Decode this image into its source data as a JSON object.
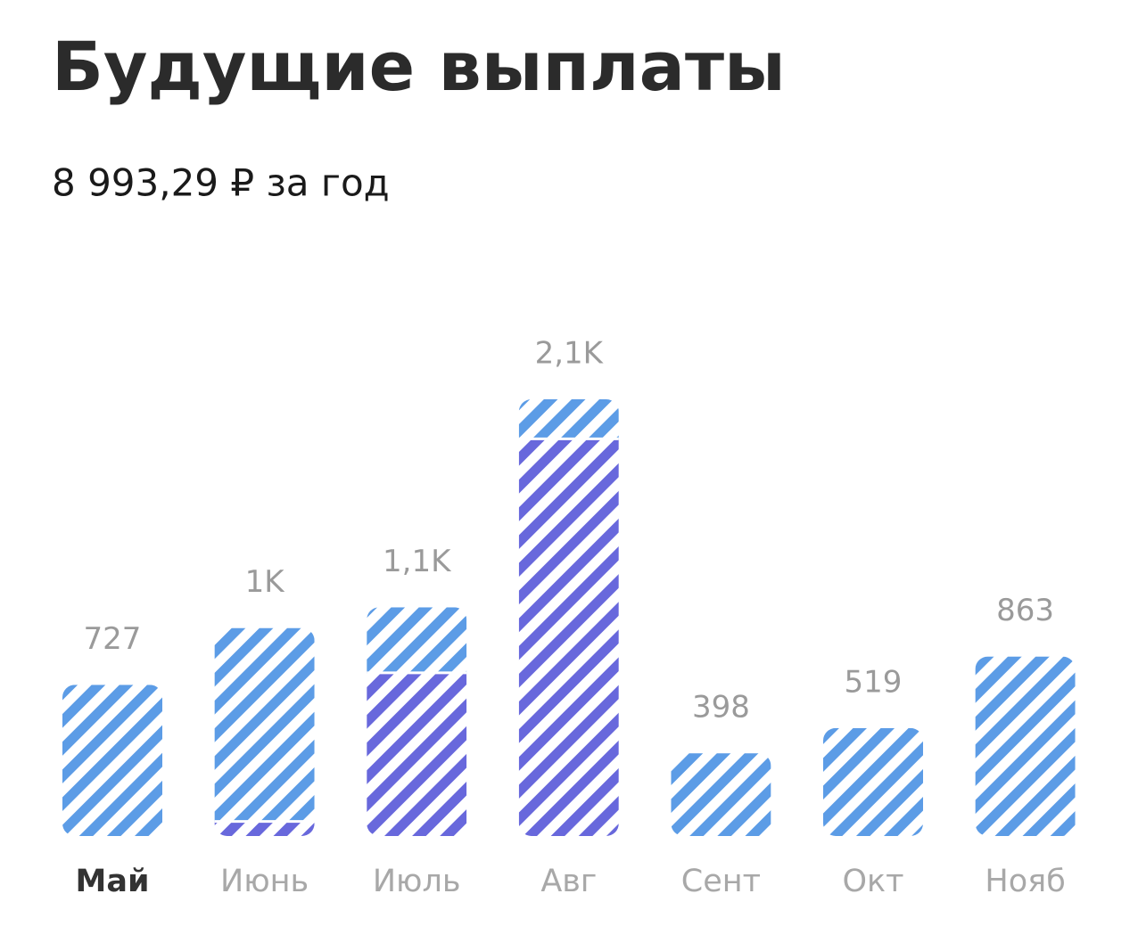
{
  "chart_data": {
    "type": "bar",
    "stacked": true,
    "title": "Будущие выплаты",
    "subtitle": "8 993,29 ₽ за год",
    "categories": [
      "Май",
      "Июнь",
      "Июль",
      "Авг",
      "Сент",
      "Окт",
      "Нояб"
    ],
    "selected": 0,
    "series": [
      {
        "color": "#6868dc",
        "values": [
          0,
          70,
          785,
          1910,
          0,
          0,
          0
        ]
      },
      {
        "color": "#5c9ce6",
        "values": [
          727,
          930,
          315,
          190,
          398,
          519,
          863
        ]
      }
    ],
    "totals": {
      "values": [
        727,
        1000,
        1100,
        2100,
        398,
        519,
        863
      ],
      "value_labels": [
        "727",
        "1K",
        "1,1K",
        "2,1K",
        "398",
        "519",
        "863"
      ]
    }
  }
}
